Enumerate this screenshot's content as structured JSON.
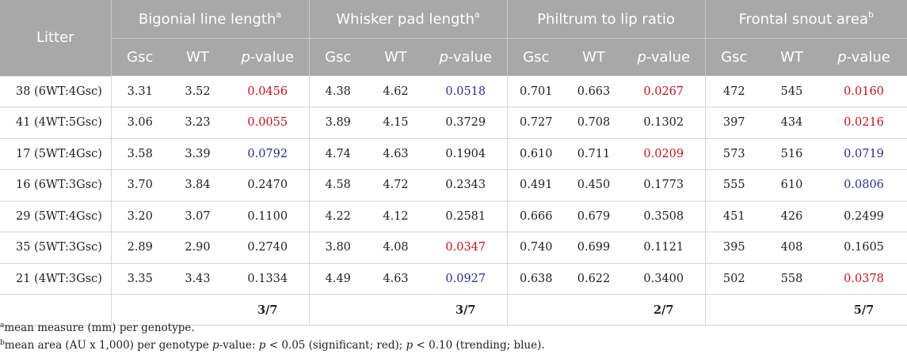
{
  "header": {
    "litter": "Litter",
    "groups": [
      {
        "label": "Bigonial line length",
        "sup": "a"
      },
      {
        "label": "Whisker pad length",
        "sup": "a"
      },
      {
        "label": "Philtrum to lip ratio",
        "sup": ""
      },
      {
        "label": "Frontal snout area",
        "sup": "b"
      }
    ],
    "sub": {
      "gsc": "Gsc",
      "wt": "WT",
      "p_italic": "p",
      "p_suffix": "-value"
    }
  },
  "colors": {
    "significant": "#c0141c",
    "trending": "#2b2f8c",
    "header_bg": "#a8a8a8"
  },
  "rows": [
    {
      "litter": "38 (6WT:4Gsc)",
      "cells": [
        {
          "gsc": "3.31",
          "wt": "3.52",
          "p": "0.0456",
          "flag": "red"
        },
        {
          "gsc": "4.38",
          "wt": "4.62",
          "p": "0.0518",
          "flag": "blue"
        },
        {
          "gsc": "0.701",
          "wt": "0.663",
          "p": "0.0267",
          "flag": "red"
        },
        {
          "gsc": "472",
          "wt": "545",
          "p": "0.0160",
          "flag": "red"
        }
      ]
    },
    {
      "litter": "41 (4WT:5Gsc)",
      "cells": [
        {
          "gsc": "3.06",
          "wt": "3.23",
          "p": "0.0055",
          "flag": "red"
        },
        {
          "gsc": "3.89",
          "wt": "4.15",
          "p": "0.3729",
          "flag": ""
        },
        {
          "gsc": "0.727",
          "wt": "0.708",
          "p": "0.1302",
          "flag": ""
        },
        {
          "gsc": "397",
          "wt": "434",
          "p": "0.0216",
          "flag": "red"
        }
      ]
    },
    {
      "litter": "17 (5WT:4Gsc)",
      "cells": [
        {
          "gsc": "3.58",
          "wt": "3.39",
          "p": "0.0792",
          "flag": "blue"
        },
        {
          "gsc": "4.74",
          "wt": "4.63",
          "p": "0.1904",
          "flag": ""
        },
        {
          "gsc": "0.610",
          "wt": "0.711",
          "p": "0.0209",
          "flag": "red"
        },
        {
          "gsc": "573",
          "wt": "516",
          "p": "0.0719",
          "flag": "blue"
        }
      ]
    },
    {
      "litter": "16 (6WT:3Gsc)",
      "cells": [
        {
          "gsc": "3.70",
          "wt": "3.84",
          "p": "0.2470",
          "flag": ""
        },
        {
          "gsc": "4.58",
          "wt": "4.72",
          "p": "0.2343",
          "flag": ""
        },
        {
          "gsc": "0.491",
          "wt": "0.450",
          "p": "0.1773",
          "flag": ""
        },
        {
          "gsc": "555",
          "wt": "610",
          "p": "0.0806",
          "flag": "blue"
        }
      ]
    },
    {
      "litter": "29 (5WT:4Gsc)",
      "cells": [
        {
          "gsc": "3.20",
          "wt": "3.07",
          "p": "0.1100",
          "flag": ""
        },
        {
          "gsc": "4.22",
          "wt": "4.12",
          "p": "0.2581",
          "flag": ""
        },
        {
          "gsc": "0.666",
          "wt": "0.679",
          "p": "0.3508",
          "flag": ""
        },
        {
          "gsc": "451",
          "wt": "426",
          "p": "0.2499",
          "flag": ""
        }
      ]
    },
    {
      "litter": "35 (5WT:3Gsc)",
      "cells": [
        {
          "gsc": "2.89",
          "wt": "2.90",
          "p": "0.2740",
          "flag": ""
        },
        {
          "gsc": "3.80",
          "wt": "4.08",
          "p": "0.0347",
          "flag": "red"
        },
        {
          "gsc": "0.740",
          "wt": "0.699",
          "p": "0.1121",
          "flag": ""
        },
        {
          "gsc": "395",
          "wt": "408",
          "p": "0.1605",
          "flag": ""
        }
      ]
    },
    {
      "litter": "21 (4WT:3Gsc)",
      "cells": [
        {
          "gsc": "3.35",
          "wt": "3.43",
          "p": "0.1334",
          "flag": ""
        },
        {
          "gsc": "4.49",
          "wt": "4.63",
          "p": "0.0927",
          "flag": "blue"
        },
        {
          "gsc": "0.638",
          "wt": "0.622",
          "p": "0.3400",
          "flag": ""
        },
        {
          "gsc": "502",
          "wt": "558",
          "p": "0.0378",
          "flag": "red"
        }
      ]
    }
  ],
  "totals": [
    "3/7",
    "3/7",
    "2/7",
    "5/7"
  ],
  "footnotes": {
    "a": {
      "sup": "a",
      "text": "mean measure (mm) per genotype."
    },
    "b": {
      "sup": "b",
      "text_before": "mean area (AU x 1,000) per genotype ",
      "p1": "p",
      "text_mid1": "-value: ",
      "p2": "p",
      "text_mid2": " < 0.05 (significant; red); ",
      "p3": "p",
      "text_after": " < 0.10 (trending; blue)."
    }
  }
}
